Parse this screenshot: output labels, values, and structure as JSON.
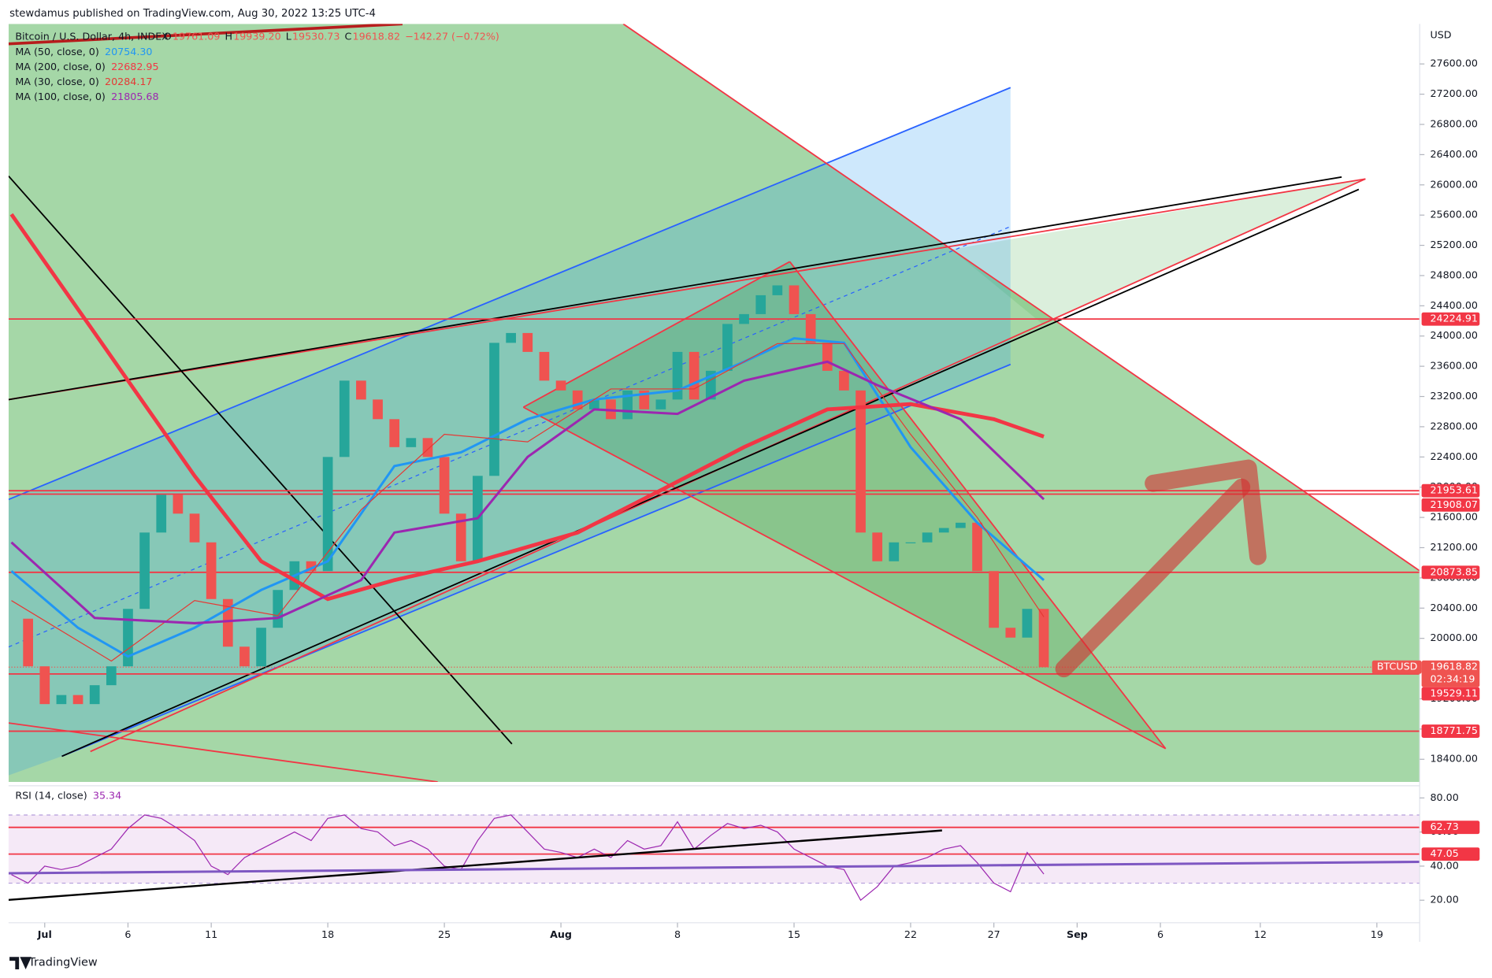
{
  "header": {
    "publisher": "stewdamus published on TradingView.com, Aug 30, 2022 13:25 UTC-4",
    "footer": "TradingView"
  },
  "chart_data": {
    "type": "candlestick",
    "title": "Bitcoin / U.S. Dollar, 4h, INDEX",
    "ohlc": [
      {
        "name": "O",
        "label": "19761.09"
      },
      {
        "name": "H",
        "label": "19939.20"
      },
      {
        "name": "L",
        "label": "19530.73"
      },
      {
        "name": "C",
        "label": "19618.82"
      }
    ],
    "change": "−142.27 (−0.72%)",
    "currency": "USD",
    "color_up": "#26a69a",
    "color_down": "#ef5350",
    "x": [
      "06-29",
      "06-30",
      "07-01",
      "07-02",
      "07-03",
      "07-04",
      "07-05",
      "07-06",
      "07-07",
      "07-08",
      "07-09",
      "07-10",
      "07-11",
      "07-12",
      "07-13",
      "07-14",
      "07-15",
      "07-16",
      "07-17",
      "07-18",
      "07-19",
      "07-20",
      "07-21",
      "07-22",
      "07-23",
      "07-24",
      "07-25",
      "07-26",
      "07-27",
      "07-28",
      "07-29",
      "07-30",
      "07-31",
      "08-01",
      "08-02",
      "08-03",
      "08-04",
      "08-05",
      "08-06",
      "08-07",
      "08-08",
      "08-09",
      "08-10",
      "08-11",
      "08-12",
      "08-13",
      "08-14",
      "08-15",
      "08-16",
      "08-17",
      "08-18",
      "08-19",
      "08-20",
      "08-21",
      "08-22",
      "08-23",
      "08-24",
      "08-25",
      "08-26",
      "08-27",
      "08-28",
      "08-29",
      "08-30"
    ],
    "values": [
      20260,
      19630,
      19130,
      19250,
      19130,
      19380,
      19630,
      20390,
      21400,
      21900,
      21650,
      21270,
      20520,
      19890,
      19630,
      20140,
      20640,
      21020,
      20890,
      22400,
      23410,
      23160,
      22900,
      22530,
      22650,
      22400,
      21650,
      21020,
      22150,
      23910,
      24040,
      23790,
      23410,
      23280,
      23030,
      23160,
      22900,
      23280,
      23030,
      23160,
      23790,
      23160,
      23540,
      24160,
      24290,
      24540,
      24670,
      24290,
      23910,
      23540,
      23280,
      21400,
      21020,
      21270,
      21270,
      21400,
      21460,
      21530,
      20890,
      20140,
      20010,
      20390,
      19618.82
    ],
    "xlim": [
      "06-29",
      "09-21"
    ],
    "xticks": [
      {
        "value": "07-01",
        "label": "Jul"
      },
      {
        "value": "07-06",
        "label": "6"
      },
      {
        "value": "07-11",
        "label": "11"
      },
      {
        "value": "07-18",
        "label": "18"
      },
      {
        "value": "07-25",
        "label": "25"
      },
      {
        "value": "08-01",
        "label": "Aug"
      },
      {
        "value": "08-08",
        "label": "8"
      },
      {
        "value": "08-15",
        "label": "15"
      },
      {
        "value": "08-22",
        "label": "22"
      },
      {
        "value": "08-27",
        "label": "27"
      },
      {
        "value": "09-01",
        "label": "Sep"
      },
      {
        "value": "09-06",
        "label": "6"
      },
      {
        "value": "09-12",
        "label": "12"
      },
      {
        "value": "09-19",
        "label": "19"
      }
    ],
    "ylim": [
      18100,
      28130
    ],
    "yticks": [
      {
        "value": 18400,
        "label": "18400.00"
      },
      {
        "value": 18800,
        "label": "18800.00"
      },
      {
        "value": 19200,
        "label": "19200.00"
      },
      {
        "value": 19600,
        "label": "19600.00"
      },
      {
        "value": 20000,
        "label": "20000.00"
      },
      {
        "value": 20400,
        "label": "20400.00"
      },
      {
        "value": 20800,
        "label": "20800.00"
      },
      {
        "value": 21200,
        "label": "21200.00"
      },
      {
        "value": 21600,
        "label": "21600.00"
      },
      {
        "value": 22000,
        "label": "22000.00"
      },
      {
        "value": 22400,
        "label": "22400.00"
      },
      {
        "value": 22800,
        "label": "22800.00"
      },
      {
        "value": 23200,
        "label": "23200.00"
      },
      {
        "value": 23600,
        "label": "23600.00"
      },
      {
        "value": 24000,
        "label": "24000.00"
      },
      {
        "value": 24400,
        "label": "24400.00"
      },
      {
        "value": 24800,
        "label": "24800.00"
      },
      {
        "value": 25200,
        "label": "25200.00"
      },
      {
        "value": 25600,
        "label": "25600.00"
      },
      {
        "value": 26000,
        "label": "26000.00"
      },
      {
        "value": 26400,
        "label": "26400.00"
      },
      {
        "value": 26800,
        "label": "26800.00"
      },
      {
        "value": 27200,
        "label": "27200.00"
      },
      {
        "value": 27600,
        "label": "27600.00"
      }
    ],
    "moving_averages": [
      {
        "name": "MA (50, close, 0)",
        "last": "20754.30",
        "color": "#2196f3",
        "x": [
          "06-29",
          "07-03",
          "07-06",
          "07-10",
          "07-14",
          "07-18",
          "07-22",
          "07-26",
          "07-30",
          "08-03",
          "08-08",
          "08-12",
          "08-15",
          "08-18",
          "08-22",
          "08-26",
          "08-30"
        ],
        "values": [
          20890,
          20140,
          19760,
          20140,
          20640,
          21020,
          22280,
          22460,
          22900,
          23160,
          23280,
          23660,
          23970,
          23910,
          22530,
          21530,
          20770
        ]
      },
      {
        "name": "MA (200, close, 0)",
        "last": "22682.95",
        "color": "#f23645",
        "x": [
          "06-29",
          "07-04",
          "07-10",
          "07-14",
          "07-18",
          "07-22",
          "07-27",
          "08-02",
          "08-07",
          "08-12",
          "08-17",
          "08-22",
          "08-27",
          "08-30"
        ],
        "values": [
          25610,
          24040,
          22150,
          21020,
          20520,
          20770,
          21020,
          21400,
          21960,
          22530,
          23030,
          23100,
          22900,
          22670
        ]
      },
      {
        "name": "MA (30, close, 0)",
        "last": "20284.17",
        "color": "#e53935",
        "x": [
          "06-29",
          "07-05",
          "07-10",
          "07-15",
          "07-20",
          "07-25",
          "07-30",
          "08-04",
          "08-09",
          "08-14",
          "08-18",
          "08-22",
          "08-26",
          "08-30"
        ],
        "values": [
          20500,
          19700,
          20500,
          20300,
          21700,
          22700,
          22600,
          23300,
          23300,
          23900,
          23900,
          22700,
          21600,
          20284
        ]
      },
      {
        "name": "MA (100, close, 0)",
        "last": "21805.68",
        "color": "#9c27b0",
        "x": [
          "06-29",
          "07-04",
          "07-10",
          "07-15",
          "07-20",
          "07-22",
          "07-27",
          "07-30",
          "08-03",
          "08-08",
          "08-12",
          "08-17",
          "08-20",
          "08-25",
          "08-30"
        ],
        "values": [
          21270,
          20270,
          20200,
          20270,
          20770,
          21400,
          21590,
          22400,
          23030,
          22970,
          23410,
          23660,
          23350,
          22900,
          21840
        ]
      }
    ],
    "levels": [
      {
        "value": 24224.91,
        "label": "24224.91"
      },
      {
        "value": 21953.61,
        "label": "21953.61"
      },
      {
        "value": 21908.07,
        "label": "21908.07"
      },
      {
        "value": 20873.85,
        "label": "20873.85"
      },
      {
        "value": 19529.11,
        "label": "19529.11"
      },
      {
        "value": 18771.75,
        "label": "18771.75"
      }
    ],
    "last_price": {
      "name": "BTCUSD",
      "value": 19618.82,
      "label": "19618.82",
      "countdown": "02:34:19"
    },
    "rsi": {
      "name": "RSI (14, close)",
      "last": "35.34",
      "color": "#9c27b0",
      "values": [
        35,
        30,
        40,
        38,
        40,
        45,
        50,
        62,
        70,
        68,
        62,
        55,
        40,
        35,
        45,
        50,
        55,
        60,
        55,
        68,
        70,
        62,
        60,
        52,
        55,
        50,
        40,
        38,
        55,
        68,
        70,
        60,
        50,
        48,
        45,
        50,
        45,
        55,
        50,
        52,
        66,
        50,
        58,
        65,
        62,
        64,
        60,
        50,
        45,
        40,
        38,
        20,
        28,
        40,
        42,
        45,
        50,
        52,
        42,
        30,
        25,
        48,
        35.34
      ],
      "ylim": [
        6.8,
        84.9
      ],
      "yticks": [
        {
          "value": 20,
          "label": "20.00"
        },
        {
          "value": 40,
          "label": "40.00"
        },
        {
          "value": 60,
          "label": "60.00"
        },
        {
          "value": 80,
          "label": "80.00"
        }
      ],
      "band": [
        30,
        70
      ],
      "levels": [
        {
          "value": 62.73,
          "label": "62.73"
        },
        {
          "value": 47.05,
          "label": "47.05"
        }
      ]
    }
  }
}
